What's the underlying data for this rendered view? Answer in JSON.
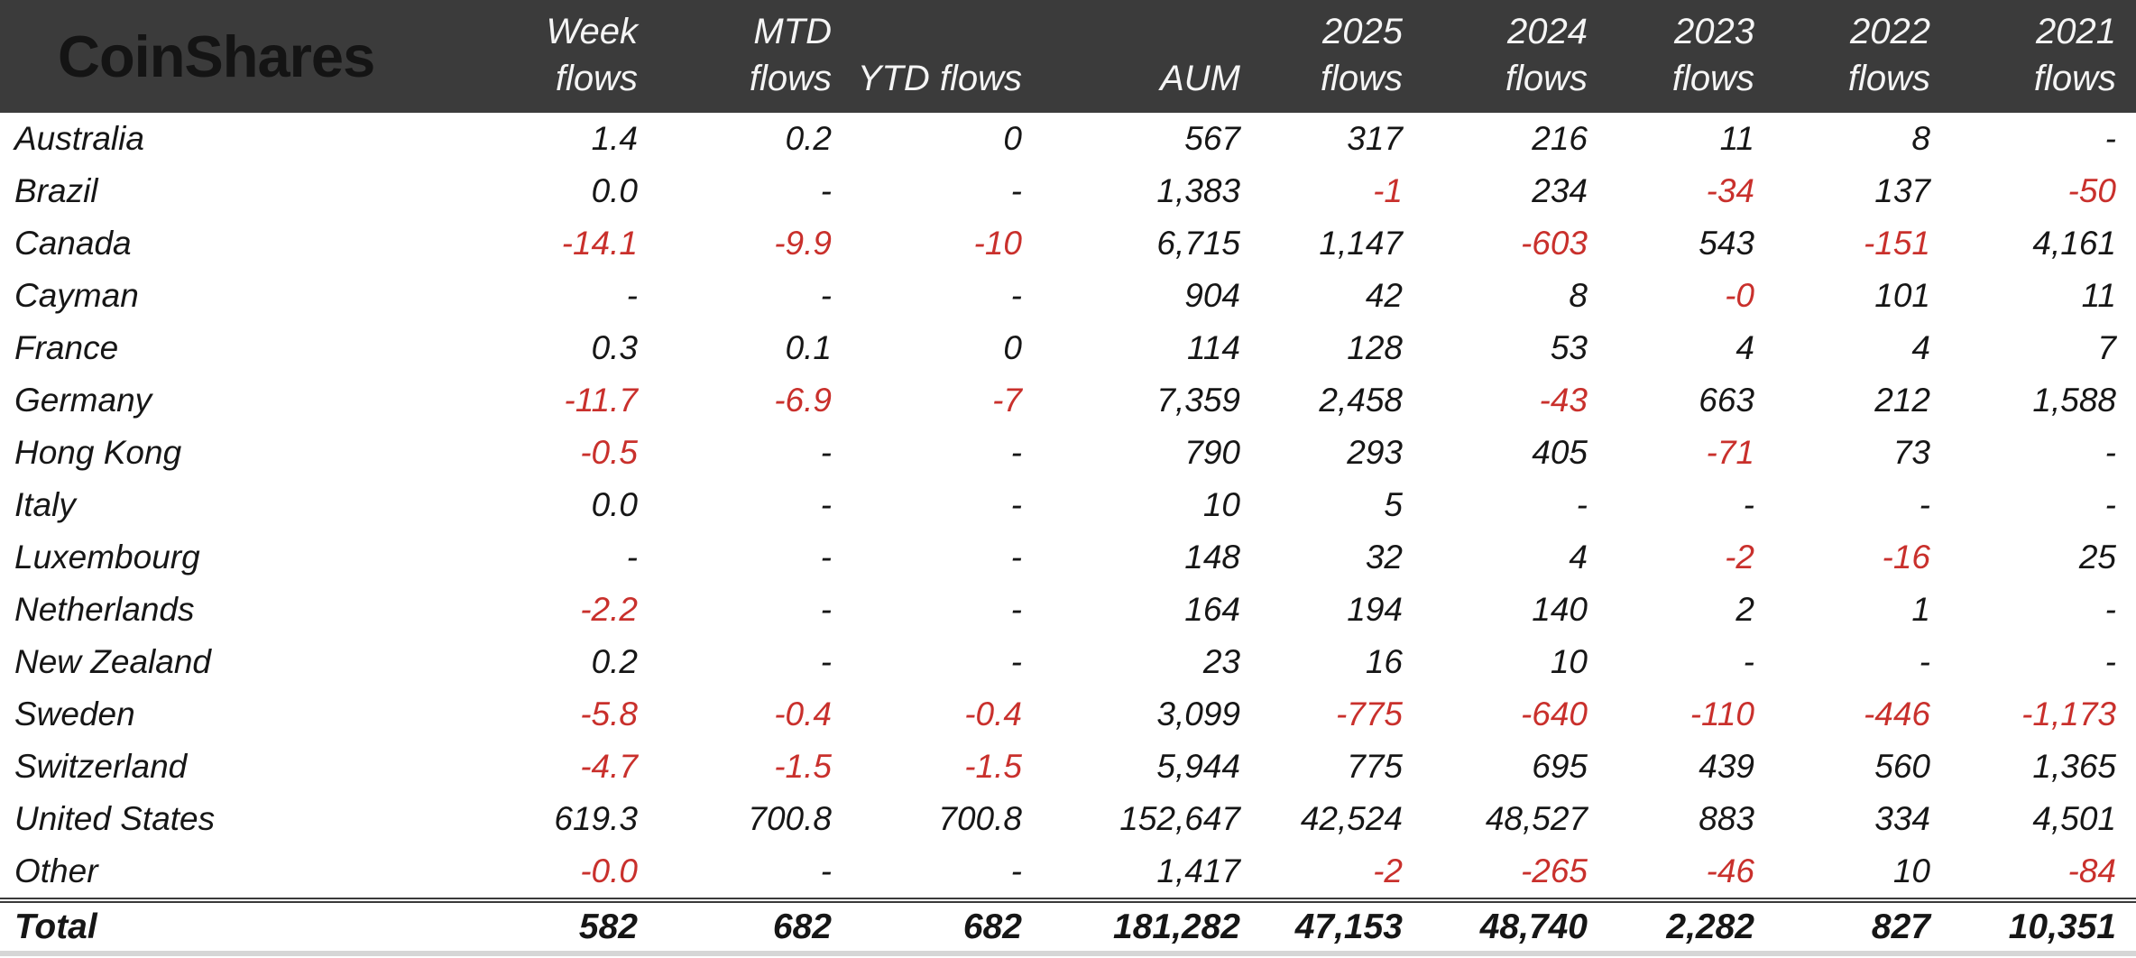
{
  "brand": {
    "logo": "CoinShares"
  },
  "colors": {
    "header_bg": "#3b3b3b",
    "header_text": "#f5f5f5",
    "logo_text": "#141414",
    "body_text": "#161616",
    "negative": "#c9302c",
    "total_rule": "#3a3a3a",
    "bottom_strip": "#d6d6d6"
  },
  "chart_data": {
    "type": "table",
    "columns": [
      {
        "key": "country",
        "line1": "",
        "line2": ""
      },
      {
        "key": "week_flows",
        "line1": "Week",
        "line2": "flows"
      },
      {
        "key": "mtd_flows",
        "line1": "MTD",
        "line2": "flows"
      },
      {
        "key": "ytd_flows",
        "line1": "",
        "line2": "YTD flows"
      },
      {
        "key": "aum",
        "line1": "",
        "line2": "AUM"
      },
      {
        "key": "flows_2025",
        "line1": "2025",
        "line2": "flows"
      },
      {
        "key": "flows_2024",
        "line1": "2024",
        "line2": "flows"
      },
      {
        "key": "flows_2023",
        "line1": "2023",
        "line2": "flows"
      },
      {
        "key": "flows_2022",
        "line1": "2022",
        "line2": "flows"
      },
      {
        "key": "flows_2021",
        "line1": "2021",
        "line2": "flows"
      }
    ],
    "rows": [
      {
        "country": "Australia",
        "values": [
          "1.4",
          "0.2",
          "0",
          "567",
          "317",
          "216",
          "11",
          "8",
          "-"
        ]
      },
      {
        "country": "Brazil",
        "values": [
          "0.0",
          "-",
          "-",
          "1,383",
          "-1",
          "234",
          "-34",
          "137",
          "-50"
        ]
      },
      {
        "country": "Canada",
        "values": [
          "-14.1",
          "-9.9",
          "-10",
          "6,715",
          "1,147",
          "-603",
          "543",
          "-151",
          "4,161"
        ]
      },
      {
        "country": "Cayman",
        "values": [
          "-",
          "-",
          "-",
          "904",
          "42",
          "8",
          "-0",
          "101",
          "11"
        ]
      },
      {
        "country": "France",
        "values": [
          "0.3",
          "0.1",
          "0",
          "114",
          "128",
          "53",
          "4",
          "4",
          "7"
        ]
      },
      {
        "country": "Germany",
        "values": [
          "-11.7",
          "-6.9",
          "-7",
          "7,359",
          "2,458",
          "-43",
          "663",
          "212",
          "1,588"
        ]
      },
      {
        "country": "Hong Kong",
        "values": [
          "-0.5",
          "-",
          "-",
          "790",
          "293",
          "405",
          "-71",
          "73",
          "-"
        ]
      },
      {
        "country": "Italy",
        "values": [
          "0.0",
          "-",
          "-",
          "10",
          "5",
          "-",
          "-",
          "-",
          "-"
        ]
      },
      {
        "country": "Luxembourg",
        "values": [
          "-",
          "-",
          "-",
          "148",
          "32",
          "4",
          "-2",
          "-16",
          "25"
        ]
      },
      {
        "country": "Netherlands",
        "values": [
          "-2.2",
          "-",
          "-",
          "164",
          "194",
          "140",
          "2",
          "1",
          "-"
        ]
      },
      {
        "country": "New Zealand",
        "values": [
          "0.2",
          "-",
          "-",
          "23",
          "16",
          "10",
          "-",
          "-",
          "-"
        ]
      },
      {
        "country": "Sweden",
        "values": [
          "-5.8",
          "-0.4",
          "-0.4",
          "3,099",
          "-775",
          "-640",
          "-110",
          "-446",
          "-1,173"
        ]
      },
      {
        "country": "Switzerland",
        "values": [
          "-4.7",
          "-1.5",
          "-1.5",
          "5,944",
          "775",
          "695",
          "439",
          "560",
          "1,365"
        ]
      },
      {
        "country": "United States",
        "values": [
          "619.3",
          "700.8",
          "700.8",
          "152,647",
          "42,524",
          "48,527",
          "883",
          "334",
          "4,501"
        ]
      },
      {
        "country": "Other",
        "values": [
          "-0.0",
          "-",
          "-",
          "1,417",
          "-2",
          "-265",
          "-46",
          "10",
          "-84"
        ]
      }
    ],
    "total": {
      "label": "Total",
      "values": [
        "582",
        "682",
        "682",
        "181,282",
        "47,153",
        "48,740",
        "2,282",
        "827",
        "10,351"
      ]
    }
  }
}
